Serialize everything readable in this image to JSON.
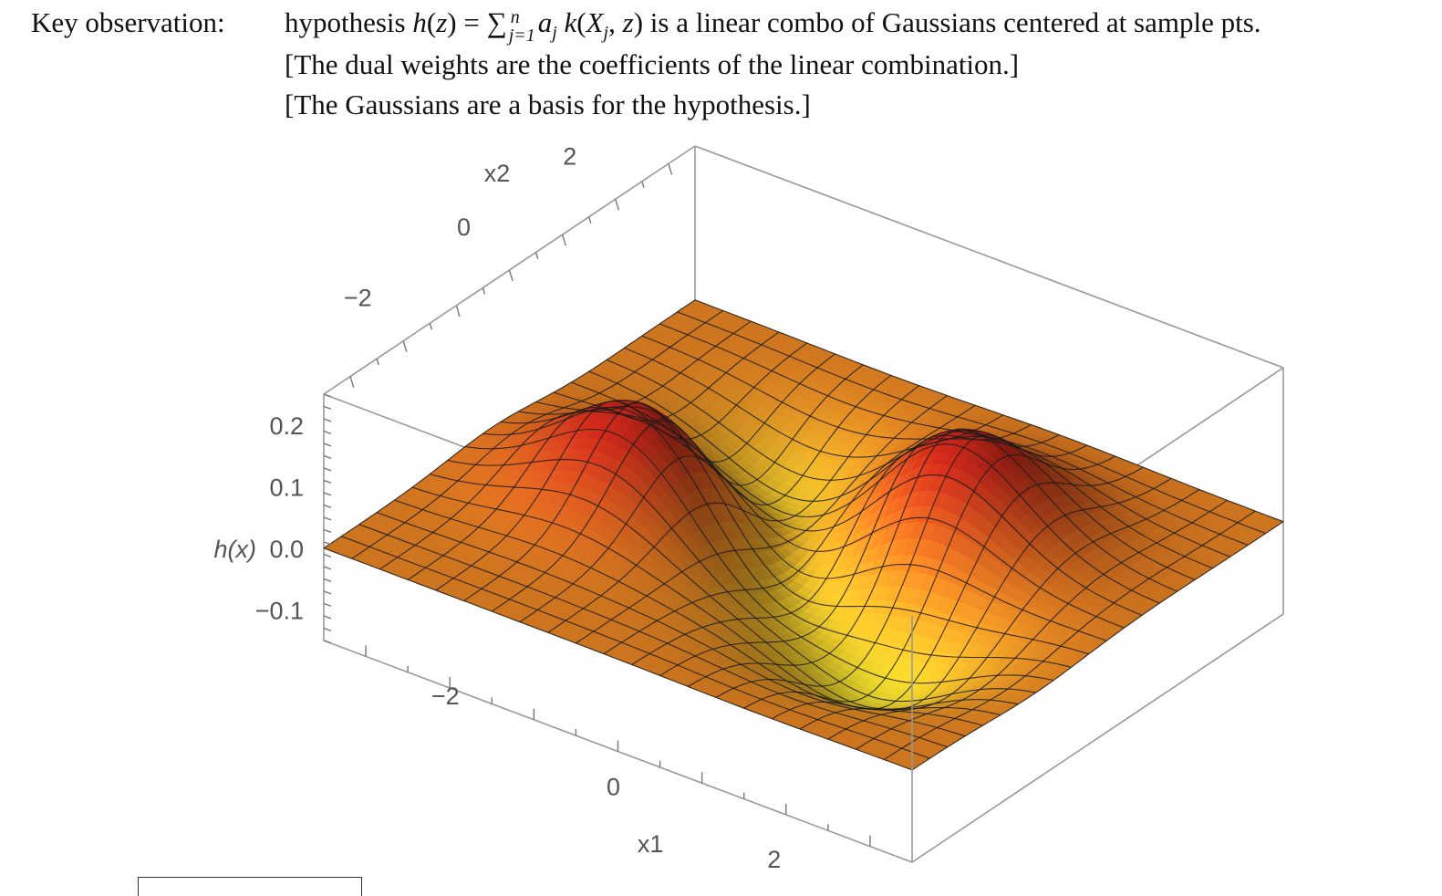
{
  "header": {
    "key_label": "Key observation:",
    "line1_prefix": "hypothesis ",
    "h": "h",
    "z": "z",
    "eq_sum": " = ∑",
    "sum_upper": "n",
    "sum_lower": "j=1",
    "a": "a",
    "a_sub": "j",
    "k": "k",
    "X": "X",
    "X_sub": "j",
    "line1_suffix": " is a linear combo of Gaussians centered at sample pts.",
    "line2": "[The dual weights are the coefficients of the linear combination.]",
    "line3": "[The Gaussians are a basis for the hypothesis.]"
  },
  "chart_data": {
    "type": "surface3d",
    "x_axis": {
      "label": "x1",
      "ticks": [
        "−2",
        "0",
        "2"
      ],
      "range": [
        -3.5,
        3.5
      ]
    },
    "y_axis": {
      "label": "x2",
      "ticks": [
        "−2",
        "0",
        "2"
      ],
      "range": [
        -3.5,
        3.5
      ]
    },
    "z_axis": {
      "label": "h(x)",
      "ticks": [
        "0.2",
        "0.1",
        "0.0",
        "−0.1"
      ],
      "range": [
        -0.15,
        0.25
      ]
    },
    "gaussians": [
      {
        "center": [
          -1.6,
          -0.3
        ],
        "weight": 0.17
      },
      {
        "center": [
          1.0,
          1.2
        ],
        "weight": 0.16
      },
      {
        "center": [
          -1.2,
          1.2
        ],
        "weight": -0.1
      },
      {
        "center": [
          1.6,
          -1.2
        ],
        "weight": -0.11
      },
      {
        "center": [
          0.0,
          0.0
        ],
        "weight": -0.12
      }
    ],
    "mesh_lines": 21,
    "colors": {
      "low": "#f8f030",
      "mid": "#ee8a24",
      "high": "#c8281a",
      "mesh": "#1a1a1a",
      "box": "#999999"
    }
  }
}
